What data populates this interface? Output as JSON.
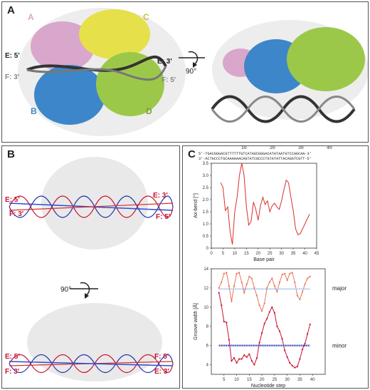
{
  "panel_a": {
    "label": "A",
    "chains": {
      "a": "A",
      "b": "B",
      "c": "C",
      "d": "D"
    },
    "strands": {
      "e5": "E: 5'",
      "f3": "F: 3'",
      "e3": "E: 3'",
      "f5": "F: 5'"
    },
    "rotation": "90°",
    "colors": {
      "a": "#d9a6cc",
      "b": "#3d86c9",
      "c": "#e6e04a",
      "d": "#9cc84a"
    }
  },
  "panel_b": {
    "label": "B",
    "top": {
      "e5": "E: 5'",
      "f3": "F: 3'",
      "e3": "E: 3'",
      "f5": "F: 5'"
    },
    "rotation": "90°",
    "bottom": {
      "e5": "E: 5'",
      "f3": "F: 3'",
      "f5": "F: 5'",
      "e3": "E: 3'"
    }
  },
  "panel_c": {
    "label": "C",
    "ruler": [
      "10",
      "20",
      "30",
      "40"
    ],
    "seq_top": "5'-TGACGGGACGTTTTTTGTCATAGCGGGACATATAATGTCCAGCAA-3'",
    "seq_bot": "3'-ACTGCCCTGCAAAAAACAGTATCGCCCTGTATATTACAGGTCGTT-5'",
    "chart_data": [
      {
        "type": "line",
        "xlabel": "Base pair",
        "ylabel": "Ax-bend [°]",
        "xlim": [
          0,
          45
        ],
        "ylim": [
          0,
          3.5
        ],
        "xticks": [
          "0",
          "5",
          "10",
          "15",
          "20",
          "25",
          "30",
          "35",
          "40",
          "45"
        ],
        "yticks": [
          "0",
          "0.5",
          "1.0",
          "1.5",
          "2.0",
          "2.5",
          "3.0",
          "3.5"
        ],
        "series": [
          {
            "color": "#d9302a",
            "x": [
              4,
              5,
              6,
              7,
              8,
              9,
              10,
              11,
              12,
              13,
              14,
              15,
              16,
              17,
              18,
              19,
              20,
              21,
              22,
              23,
              24,
              25,
              26,
              27,
              28,
              29,
              30,
              31,
              32,
              33,
              34,
              35,
              36,
              37,
              38,
              39,
              40,
              41,
              42
            ],
            "y": [
              2.7,
              2.5,
              1.55,
              1.7,
              0.7,
              0.15,
              1.5,
              2.1,
              3.0,
              3.5,
              3.0,
              1.7,
              0.95,
              1.1,
              1.9,
              1.6,
              1.15,
              1.75,
              2.1,
              1.8,
              1.95,
              1.5,
              1.75,
              1.85,
              1.7,
              1.6,
              1.95,
              2.4,
              2.8,
              2.7,
              2.1,
              1.55,
              0.8,
              0.55,
              0.6,
              0.8,
              1.0,
              1.2,
              1.4
            ]
          }
        ]
      },
      {
        "type": "line",
        "xlabel": "Nucleotide step",
        "ylabel": "Groove width [Å]",
        "xlim": [
          0,
          45
        ],
        "ylim": [
          3,
          14
        ],
        "xticks": [
          "5",
          "10",
          "15",
          "20",
          "25",
          "30",
          "35",
          "40"
        ],
        "yticks": [
          "4",
          "6",
          "8",
          "10",
          "12",
          "14"
        ],
        "series": [
          {
            "name": "major",
            "color": "#e8765a",
            "x": [
              3,
              4,
              5,
              6,
              7,
              8,
              9,
              10,
              11,
              12,
              13,
              14,
              15,
              16,
              17,
              18,
              19,
              20,
              21,
              22,
              23,
              24,
              25,
              26,
              27,
              28,
              29,
              30,
              31,
              32,
              33,
              34,
              35,
              36,
              37,
              38,
              39
            ],
            "y": [
              12.0,
              12.6,
              13.5,
              13.6,
              12.2,
              10.6,
              12.2,
              13.5,
              13.6,
              12.6,
              11.5,
              12.4,
              13.2,
              13.0,
              12.0,
              11.2,
              10.2,
              9.6,
              10.4,
              12.0,
              12.6,
              13.0,
              12.2,
              11.6,
              12.6,
              13.4,
              13.5,
              12.8,
              13.5,
              13.6,
              12.6,
              11.2,
              10.8,
              11.6,
              12.4,
              13.0,
              13.2
            ]
          },
          {
            "name": "major reference",
            "color": "#9ec3e6",
            "x": [
              3,
              39
            ],
            "y": [
              11.9,
              11.9
            ]
          },
          {
            "name": "minor",
            "color": "#c8102e",
            "x": [
              3,
              4,
              5,
              6,
              7,
              8,
              9,
              10,
              11,
              12,
              13,
              14,
              15,
              16,
              17,
              18,
              19,
              20,
              21,
              22,
              23,
              24,
              25,
              26,
              27,
              28,
              29,
              30,
              31,
              32,
              33,
              34,
              35,
              36,
              37,
              38,
              39
            ],
            "y": [
              11.5,
              10.2,
              8.5,
              8.4,
              6.6,
              4.4,
              4.7,
              4.2,
              4.6,
              4.6,
              5.0,
              4.8,
              5.1,
              4.4,
              4.0,
              4.7,
              6.3,
              7.3,
              8.3,
              8.8,
              9.5,
              10.0,
              9.4,
              8.0,
              7.5,
              6.7,
              5.5,
              4.8,
              4.2,
              3.9,
              3.7,
              3.8,
              4.6,
              5.6,
              6.2,
              7.2,
              8.2
            ]
          },
          {
            "name": "minor reference",
            "color": "#1a2fae",
            "x": [
              3,
              39
            ],
            "y": [
              6.0,
              6.0
            ]
          }
        ],
        "labels": {
          "major": "major",
          "minor": "minor"
        }
      }
    ]
  }
}
